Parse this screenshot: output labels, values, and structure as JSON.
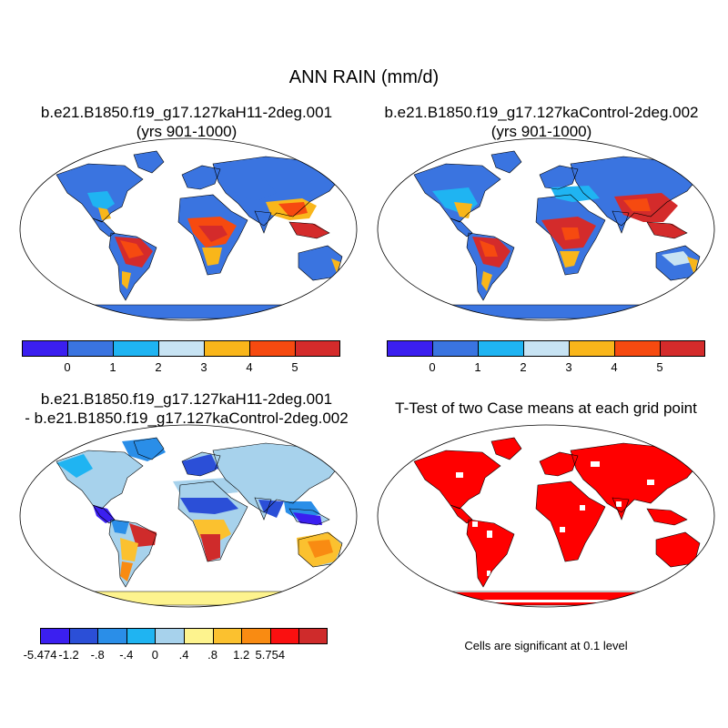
{
  "main_title": "ANN RAIN (mm/d)",
  "panels": {
    "case1": {
      "title_line1": "b.e21.B1850.f19_g17.127kaH11-2deg.001",
      "title_line2": "(yrs 901-1000)"
    },
    "case2": {
      "title_line1": "b.e21.B1850.f19_g17.127kaControl-2deg.002",
      "title_line2": "(yrs 901-1000)"
    },
    "diff": {
      "title_line1": "b.e21.B1850.f19_g17.127kaH11-2deg.001",
      "title_line2": "- b.e21.B1850.f19_g17.127kaControl-2deg.002"
    },
    "ttest": {
      "title": "T-Test of two Case means at each grid point",
      "note": "Cells are significant at 0.1 level"
    }
  },
  "colorbars": {
    "rain": {
      "colors": [
        "#3b1ff0",
        "#3a74e0",
        "#1fb4f2",
        "#c7e3f3",
        "#f9b61a",
        "#f64a10",
        "#d42b2b"
      ],
      "labels": [
        "0",
        "1",
        "2",
        "3",
        "4",
        "5"
      ]
    },
    "diff": {
      "colors": [
        "#3b1ff0",
        "#2b4fd7",
        "#2a8ee8",
        "#1fb4f2",
        "#a7d2ec",
        "#fdf38e",
        "#fbc12f",
        "#f98b12",
        "#fa1010",
        "#cf2b2b"
      ],
      "labels": [
        "-5.474",
        "-1.2",
        "-.8",
        "-.4",
        "0",
        ".4",
        ".8",
        "1.2",
        "5.754"
      ]
    }
  },
  "significance_color": "#ff0000"
}
